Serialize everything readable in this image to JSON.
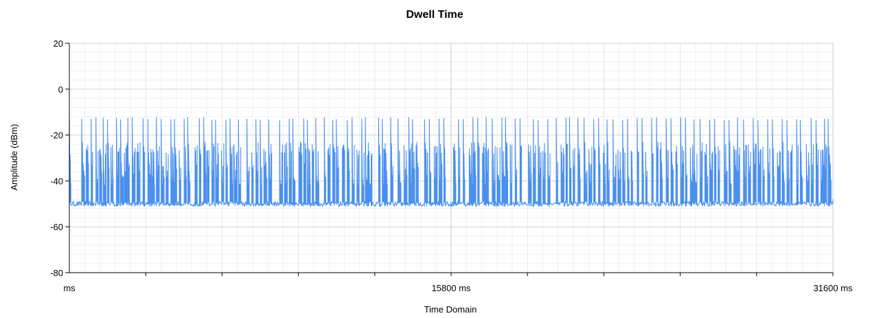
{
  "chart_data": {
    "type": "line",
    "title": "Dwell Time",
    "xlabel": "Time Domain",
    "ylabel": "Amplitude (dBm)",
    "xlim": [
      0,
      31600
    ],
    "ylim": [
      -80,
      20
    ],
    "x_tick_labels": [
      "ms",
      "15800 ms",
      "31600 ms"
    ],
    "x_tick_values": [
      0,
      15800,
      31600
    ],
    "y_ticks": [
      -80,
      -60,
      -40,
      -20,
      0,
      20
    ],
    "grid": true,
    "legend": "none",
    "series": [
      {
        "color": "#4a90ee",
        "noise_floor_dbm": -50,
        "pulse_peak_dbm": -13,
        "pulse_mid_dbm": -26,
        "burst_times_ms": [
          0,
          510,
          700,
          900,
          1100,
          1250,
          1400,
          1580,
          1720,
          1950,
          2120,
          2280,
          2420,
          2600,
          2800,
          3050,
          3250,
          3400,
          3600,
          3800,
          4000,
          4200,
          4350,
          4550,
          4750,
          4900,
          5200,
          5380,
          5560,
          5720,
          5900,
          6050,
          6300,
          6480,
          6650,
          6820,
          7000,
          7350,
          7550,
          7720,
          7900,
          8050,
          8250,
          8700,
          8900,
          9100,
          9250,
          9500,
          9700,
          9850,
          10050,
          10200,
          10550,
          10700,
          10900,
          11050,
          11300,
          11500,
          11700,
          11900,
          12100,
          12250,
          12400,
          12800,
          12950,
          13100,
          13300,
          13600,
          13850,
          14050,
          14200,
          14350,
          14700,
          14900,
          15100,
          15300,
          15500,
          15900,
          16100,
          16300,
          16550,
          16700,
          16900,
          17100,
          17250,
          17500,
          17700,
          17900,
          18050,
          18250,
          18450,
          18650,
          19000,
          19200,
          19400,
          19600,
          19800,
          20150,
          20350,
          20550,
          20700,
          20850,
          21050,
          21300,
          21500,
          21700,
          21900,
          22100,
          22250,
          22500,
          22700,
          22900,
          23100,
          23250,
          23500,
          23700,
          23850,
          24100,
          24300,
          24450,
          24700,
          24900,
          25100,
          25300,
          25500,
          25700,
          25850,
          26100,
          26300,
          26500,
          26700,
          26850,
          27100,
          27300,
          27500,
          27650,
          27900,
          28100,
          28300,
          28500,
          28700,
          28900,
          29100,
          29300,
          29500,
          29700,
          29850,
          30100,
          30250,
          30500,
          30700,
          30900,
          31100,
          31250,
          31400
        ]
      }
    ]
  }
}
